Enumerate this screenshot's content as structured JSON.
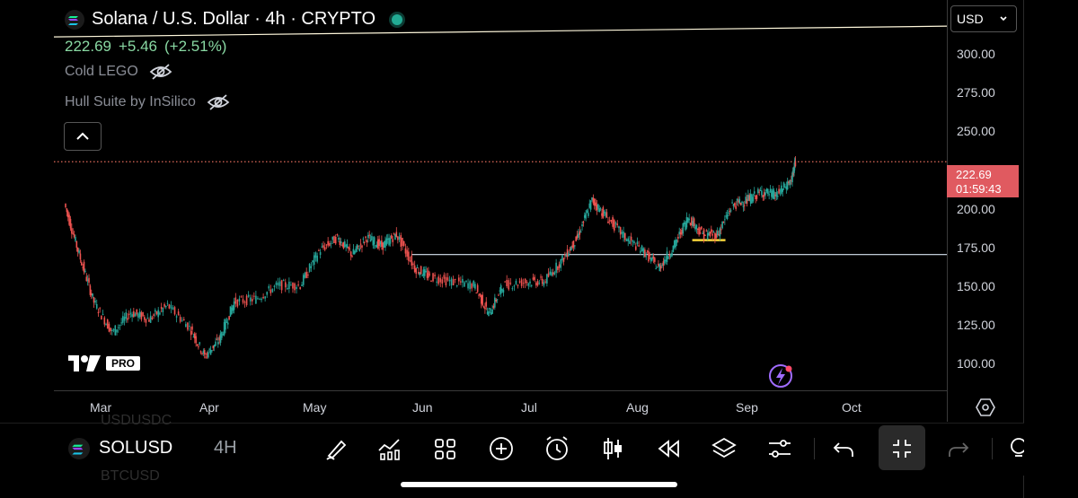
{
  "header": {
    "title": "Solana / U.S. Dollar · 4h · CRYPTO",
    "price": "222.69",
    "change": "+5.46",
    "change_pct": "(+2.51%)"
  },
  "indicators": [
    {
      "name": "Cold LEGO",
      "icon": "eye-off-icon"
    },
    {
      "name": "Hull Suite by InSilico",
      "icon": "eye-off-icon"
    }
  ],
  "currency": "USD",
  "last_price": {
    "value": "222.69",
    "countdown": "01:59:43"
  },
  "price_ticks": [
    "300.00",
    "275.00",
    "250.00",
    "200.00",
    "175.00",
    "150.00",
    "125.00",
    "100.00"
  ],
  "time_ticks": [
    "Mar",
    "Apr",
    "May",
    "Jun",
    "Jul",
    "Aug",
    "Sep",
    "Oct"
  ],
  "chart_data": {
    "type": "line",
    "series": [
      {
        "x": [
          "2025-02-25",
          "2025-03-01",
          "2025-03-05",
          "2025-03-10",
          "2025-03-15",
          "2025-03-20",
          "2025-03-25",
          "2025-03-31",
          "2025-04-04",
          "2025-04-08",
          "2025-04-12",
          "2025-04-18",
          "2025-04-24",
          "2025-04-30",
          "2025-05-05",
          "2025-05-10",
          "2025-05-14",
          "2025-05-18",
          "2025-05-22",
          "2025-05-26",
          "2025-05-31",
          "2025-06-04",
          "2025-06-10",
          "2025-06-16",
          "2025-06-20",
          "2025-06-24",
          "2025-06-30",
          "2025-07-05",
          "2025-07-10",
          "2025-07-14",
          "2025-07-18",
          "2025-07-22",
          "2025-07-27",
          "2025-08-01",
          "2025-08-05",
          "2025-08-09",
          "2025-08-13",
          "2025-08-17",
          "2025-08-21",
          "2025-08-25",
          "2025-08-29",
          "2025-09-02",
          "2025-09-06",
          "2025-09-10",
          "2025-09-11"
        ],
        "values": [
          198,
          168,
          140,
          122,
          134,
          130,
          138,
          125,
          108,
          118,
          140,
          142,
          150,
          150,
          170,
          178,
          168,
          178,
          173,
          180,
          160,
          155,
          152,
          150,
          133,
          150,
          152,
          152,
          165,
          178,
          200,
          190,
          178,
          170,
          160,
          172,
          190,
          180,
          180,
          197,
          200,
          205,
          203,
          212,
          222.69
        ]
      }
    ],
    "ylim": [
      88,
      318
    ],
    "grid": false,
    "horizontal_lines": [
      {
        "price": 301,
        "color": "#fff8dc"
      },
      {
        "price": 168,
        "color": "#d8e4f2"
      },
      {
        "price": 176.5,
        "color": "#f5d23a"
      },
      {
        "price": 222.69,
        "color": "#e06a5a"
      }
    ]
  },
  "bottom": {
    "symbol": "SOLUSD",
    "interval": "4H",
    "ghost_top": "USDUSDC",
    "ghost_bottom": "BTCUSD"
  },
  "brand": {
    "badge": "PRO"
  }
}
